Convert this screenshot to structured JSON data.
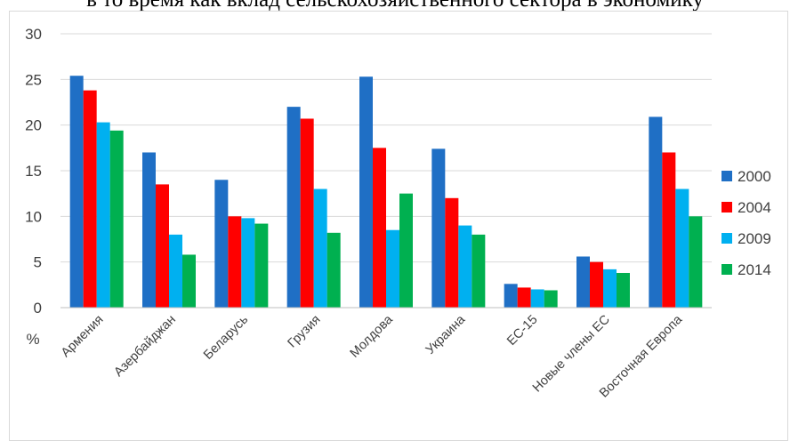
{
  "caption": "в то время как вклад сельскохозяйственного сектора в экономику",
  "chart_data": {
    "type": "bar",
    "title": "",
    "xlabel": "",
    "ylabel": "%",
    "ylim": [
      0,
      30
    ],
    "yticks": [
      "0",
      "5",
      "10",
      "15",
      "20",
      "25",
      "30"
    ],
    "grid": true,
    "legend_position": "right",
    "categories": [
      "Армения",
      "Азербайджан",
      "Беларусь",
      "Грузия",
      "Молдова",
      "Украина",
      "ЕС-15",
      "Новые члены ЕС",
      "Восточная Европа"
    ],
    "series": [
      {
        "name": "2000",
        "color": "#1f6fc5",
        "values": [
          25.4,
          17.0,
          14.0,
          22.0,
          25.3,
          17.4,
          2.6,
          5.6,
          20.9
        ]
      },
      {
        "name": "2004",
        "color": "#ff0000",
        "values": [
          23.8,
          13.5,
          10.0,
          20.7,
          17.5,
          12.0,
          2.2,
          5.0,
          17.0
        ]
      },
      {
        "name": "2009",
        "color": "#00b0f0",
        "values": [
          20.3,
          8.0,
          9.8,
          13.0,
          8.5,
          9.0,
          2.0,
          4.2,
          13.0
        ]
      },
      {
        "name": "2014",
        "color": "#00b050",
        "values": [
          19.4,
          5.8,
          9.2,
          8.2,
          12.5,
          8.0,
          1.9,
          3.8,
          10.0
        ]
      }
    ]
  }
}
